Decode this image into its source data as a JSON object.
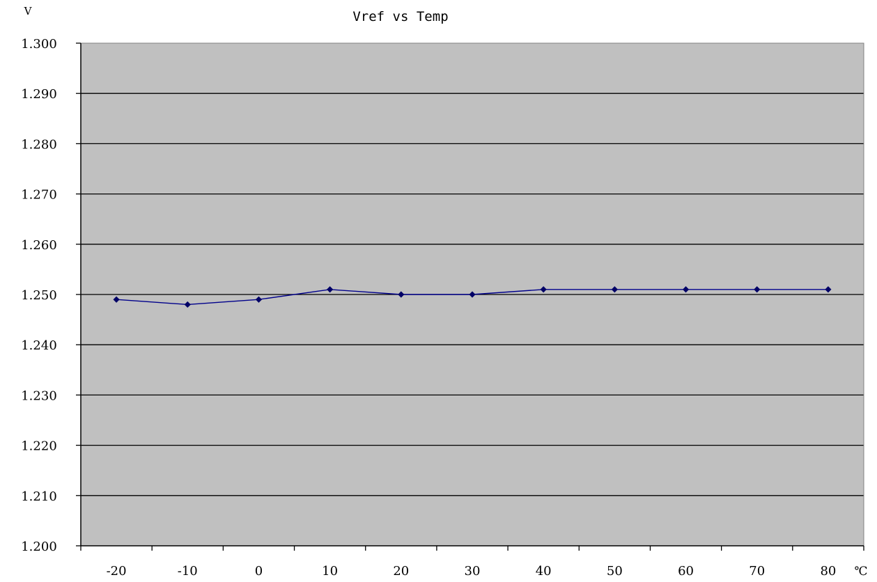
{
  "chart_data": {
    "type": "line",
    "title": "Vref vs Temp",
    "ylabel": "V",
    "xlabel": "℃",
    "x": [
      -20,
      -10,
      0,
      10,
      20,
      30,
      40,
      50,
      60,
      70,
      80
    ],
    "x_tick_labels": [
      "-20",
      "-10",
      "0",
      "10",
      "20",
      "30",
      "40",
      "50",
      "60",
      "70",
      "80"
    ],
    "y_tick_labels": [
      "1.200",
      "1.210",
      "1.220",
      "1.230",
      "1.240",
      "1.250",
      "1.260",
      "1.270",
      "1.280",
      "1.290",
      "1.300"
    ],
    "y_ticks": [
      1.2,
      1.21,
      1.22,
      1.23,
      1.24,
      1.25,
      1.26,
      1.27,
      1.28,
      1.29,
      1.3
    ],
    "ylim": [
      1.2,
      1.3
    ],
    "series": [
      {
        "values": [
          1.249,
          1.248,
          1.249,
          1.251,
          1.25,
          1.25,
          1.251,
          1.251,
          1.251,
          1.251,
          1.251
        ]
      }
    ],
    "grid": true,
    "legend": "none",
    "colors": {
      "plot_background": "#c0c0c0",
      "gridline": "#000000",
      "line": "#00008b",
      "marker": "#000066"
    }
  }
}
